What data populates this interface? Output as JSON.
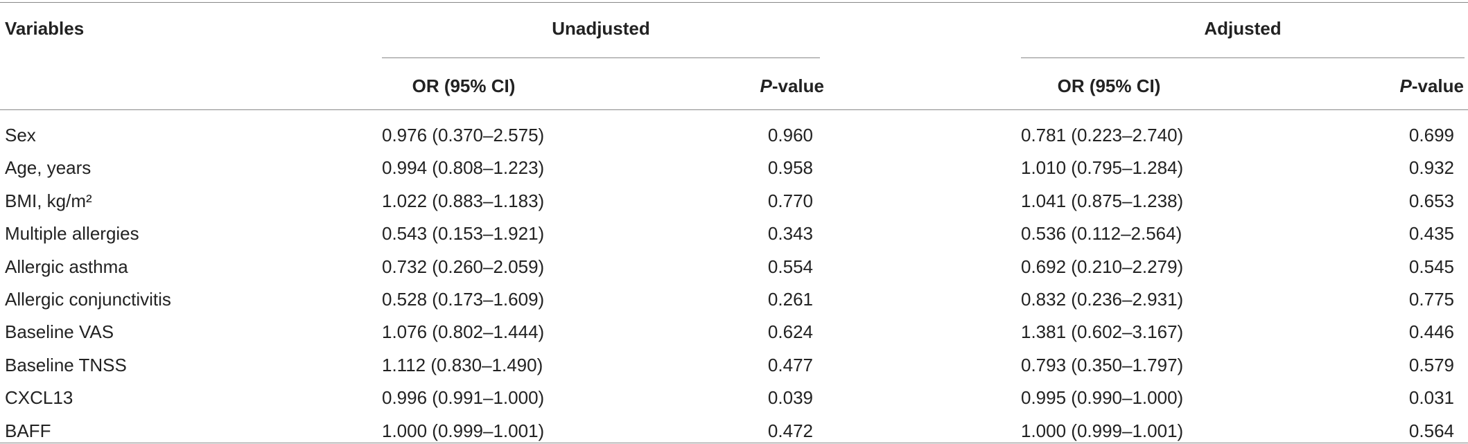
{
  "table": {
    "header": [
      "Variables",
      "Unadjusted",
      "Adjusted"
    ],
    "subheader": [
      "OR (95% CI)",
      "P-value",
      "OR (95% CI)",
      "P-value"
    ],
    "rows": [
      [
        "Sex",
        "0.976 (0.370–2.575)",
        "0.960",
        "0.781 (0.223–2.740)",
        "0.699"
      ],
      [
        "Age, years",
        "0.994 (0.808–1.223)",
        "0.958",
        "1.010 (0.795–1.284)",
        "0.932"
      ],
      [
        "BMI, kg/m²",
        "1.022 (0.883–1.183)",
        "0.770",
        "1.041 (0.875–1.238)",
        "0.653"
      ],
      [
        "Multiple allergies",
        "0.543 (0.153–1.921)",
        "0.343",
        "0.536 (0.112–2.564)",
        "0.435"
      ],
      [
        "Allergic asthma",
        "0.732 (0.260–2.059)",
        "0.554",
        "0.692 (0.210–2.279)",
        "0.545"
      ],
      [
        "Allergic conjunctivitis",
        "0.528 (0.173–1.609)",
        "0.261",
        "0.832 (0.236–2.931)",
        "0.775"
      ],
      [
        "Baseline VAS",
        "1.076 (0.802–1.444)",
        "0.624",
        "1.381 (0.602–3.167)",
        "0.446"
      ],
      [
        "Baseline TNSS",
        "1.112 (0.830–1.490)",
        "0.477",
        "0.793 (0.350–1.797)",
        "0.579"
      ],
      [
        "CXCL13",
        "0.996 (0.991–1.000)",
        "0.039",
        "0.995 (0.990–1.000)",
        "0.031"
      ],
      [
        "BAFF",
        "1.000 (0.999–1.001)",
        "0.472",
        "1.000 (0.999–1.001)",
        "0.564"
      ]
    ]
  }
}
